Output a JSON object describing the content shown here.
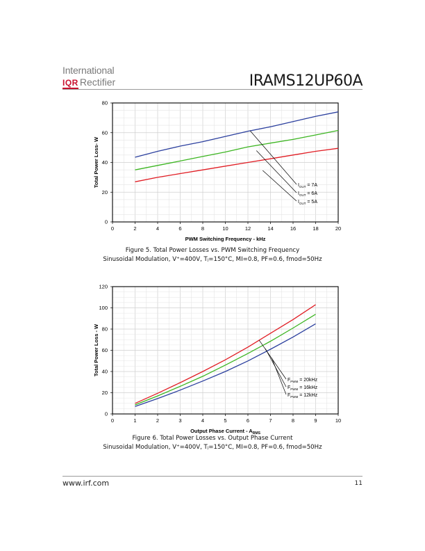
{
  "header": {
    "logo_line1": "International",
    "logo_ior": "IQR",
    "logo_rectifier": "Rectifier",
    "part_number": "IRAMS12UP60A"
  },
  "figures": [
    {
      "caption_line1": "Figure 5.  Total Power Losses vs. PWM Switching Frequency",
      "caption_line2": "Sinusoidal Modulation, V⁺=400V, Tⱼ=150°C, MI=0.8, PF=0.6, fmod=50Hz"
    },
    {
      "caption_line1": "Figure 6.  Total Power Losses vs. Output Phase Current",
      "caption_line2": "Sinusoidal Modulation, V⁺=400V, Tⱼ=150°C, MI=0.8, PF=0.6, fmod=50Hz"
    }
  ],
  "chart_data": [
    {
      "type": "line",
      "xlabel": "PWM Switching Frequency - kHz",
      "ylabel": "Total Power Loss- W",
      "xlim": [
        0,
        20
      ],
      "ylim": [
        0,
        80
      ],
      "xticks": [
        0,
        2,
        4,
        6,
        8,
        10,
        12,
        14,
        16,
        18,
        20
      ],
      "yticks": [
        0,
        20,
        40,
        60,
        80
      ],
      "grid": true,
      "x": [
        2,
        4,
        6,
        8,
        10,
        12,
        14,
        16,
        18,
        20
      ],
      "series": [
        {
          "name": "IOUT = 7A",
          "label_main": "I",
          "label_sub": "OUT",
          "label_rest": " = 7A",
          "color": "#2b3f9e",
          "values": [
            43.5,
            47.5,
            51,
            54,
            57.5,
            61,
            64,
            67.5,
            71,
            74
          ]
        },
        {
          "name": "IOUT = 6A",
          "label_main": "I",
          "label_sub": "OUT",
          "label_rest": " = 6A",
          "color": "#3cb521",
          "values": [
            35,
            38,
            41,
            44,
            47,
            50.5,
            53,
            55.5,
            58.5,
            61.5
          ]
        },
        {
          "name": "IOUT = 5A",
          "label_main": "I",
          "label_sub": "OUT",
          "label_rest": " = 5A",
          "color": "#e11d24",
          "values": [
            27,
            30,
            32.5,
            35,
            37.5,
            40,
            42.5,
            45,
            47.5,
            49.5
          ]
        }
      ]
    },
    {
      "type": "line",
      "xlabel": "Output Phase Current - A",
      "xlabel_sub": "RMS",
      "ylabel": "Total Power Loss - W",
      "xlim": [
        0,
        10
      ],
      "ylim": [
        0,
        120
      ],
      "xticks": [
        0,
        1,
        2,
        3,
        4,
        5,
        6,
        7,
        8,
        9,
        10
      ],
      "yticks": [
        0,
        20,
        40,
        60,
        80,
        100,
        120
      ],
      "grid": true,
      "x": [
        1,
        2,
        3,
        4,
        5,
        6,
        7,
        8,
        9
      ],
      "series": [
        {
          "name": "FPWM = 20kHz",
          "label_main": "F",
          "label_sub": "PWM",
          "label_rest": " = 20kHz",
          "color": "#e11d24",
          "values": [
            10,
            19.5,
            29.5,
            40,
            51,
            63,
            76,
            89,
            103
          ]
        },
        {
          "name": "FPWM = 16kHz",
          "label_main": "F",
          "label_sub": "PWM",
          "label_rest": " = 16kHz",
          "color": "#3cb521",
          "values": [
            8.5,
            17,
            26,
            35.5,
            46,
            57,
            68.5,
            81,
            94
          ]
        },
        {
          "name": "FPWM = 12kHz",
          "label_main": "F",
          "label_sub": "PWM",
          "label_rest": " = 12kHz",
          "color": "#2b3f9e",
          "values": [
            7,
            14.5,
            22.5,
            31,
            40,
            50,
            61,
            72.5,
            85
          ]
        }
      ]
    }
  ],
  "footer": {
    "url": "www.irf.com",
    "page": "11"
  }
}
